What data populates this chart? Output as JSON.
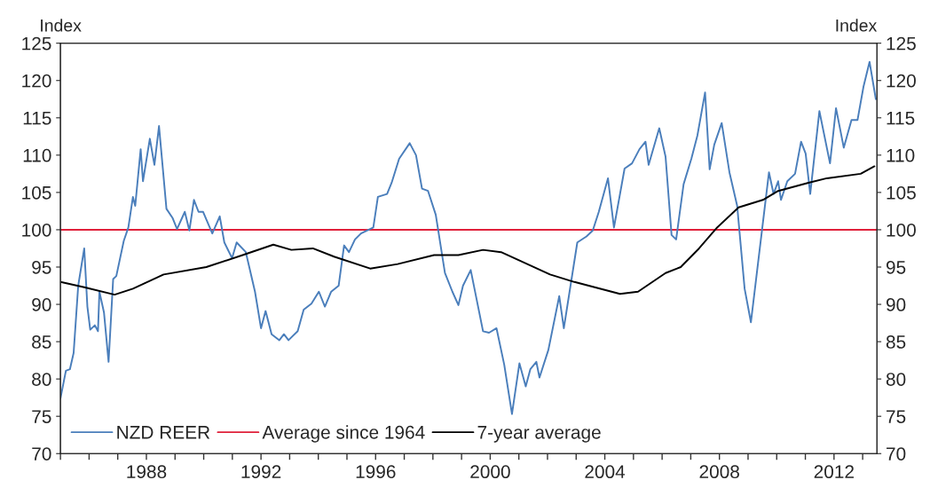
{
  "chart_data": {
    "type": "line",
    "ylabel": "Index",
    "y2label": "Index",
    "series": [
      {
        "name": "NZD REER",
        "color": "#4a7ebb",
        "x": [
          1985.0,
          1985.19,
          1985.33,
          1985.46,
          1985.62,
          1985.83,
          1985.94,
          1986.04,
          1986.2,
          1986.31,
          1986.36,
          1986.52,
          1986.68,
          1986.84,
          1986.95,
          1987.21,
          1987.37,
          1987.53,
          1987.61,
          1987.8,
          1987.88,
          1988.12,
          1988.28,
          1988.44,
          1988.7,
          1988.91,
          1989.07,
          1989.34,
          1989.5,
          1989.66,
          1989.82,
          1989.98,
          1990.3,
          1990.56,
          1990.72,
          1990.99,
          1991.15,
          1991.47,
          1991.79,
          1992.0,
          1992.16,
          1992.37,
          1992.64,
          1992.8,
          1992.96,
          1993.28,
          1993.49,
          1993.76,
          1994.02,
          1994.23,
          1994.45,
          1994.71,
          1994.9,
          1995.07,
          1995.28,
          1995.49,
          1995.92,
          1996.08,
          1996.4,
          1996.56,
          1996.82,
          1997.19,
          1997.41,
          1997.62,
          1997.83,
          1998.1,
          1998.42,
          1998.68,
          1998.89,
          1999.05,
          1999.32,
          1999.75,
          1999.96,
          2000.22,
          2000.49,
          2000.76,
          2001.02,
          2001.24,
          2001.4,
          2001.61,
          2001.72,
          2002.03,
          2002.41,
          2002.57,
          2003.04,
          2003.36,
          2003.58,
          2003.79,
          2004.11,
          2004.32,
          2004.69,
          2004.95,
          2005.21,
          2005.42,
          2005.53,
          2005.9,
          2006.12,
          2006.33,
          2006.49,
          2006.75,
          2007.02,
          2007.23,
          2007.5,
          2007.66,
          2007.82,
          2008.08,
          2008.35,
          2008.62,
          2008.88,
          2009.1,
          2009.41,
          2009.73,
          2009.89,
          2010.05,
          2010.15,
          2010.37,
          2010.64,
          2010.85,
          2011.01,
          2011.17,
          2011.49,
          2011.86,
          2012.07,
          2012.34,
          2012.61,
          2012.82,
          2013.03,
          2013.24,
          2013.46
        ],
        "values": [
          77.4,
          81.1,
          81.3,
          83.5,
          92.5,
          97.5,
          89.7,
          86.6,
          87.2,
          86.4,
          91.7,
          88.9,
          82.3,
          93.4,
          93.8,
          98.5,
          100.3,
          104.4,
          103.2,
          110.8,
          106.5,
          112.2,
          108.7,
          113.9,
          102.8,
          101.6,
          100.1,
          102.4,
          99.9,
          104.0,
          102.4,
          102.4,
          99.5,
          101.8,
          98.3,
          96.2,
          98.3,
          97.0,
          91.7,
          86.8,
          89.1,
          86.0,
          85.2,
          86.0,
          85.2,
          86.4,
          89.3,
          90.1,
          91.7,
          89.7,
          91.7,
          92.5,
          97.9,
          97.0,
          98.7,
          99.5,
          100.3,
          104.4,
          104.8,
          106.3,
          109.5,
          111.6,
          110.0,
          105.5,
          105.2,
          102.0,
          94.2,
          91.7,
          89.9,
          92.5,
          94.6,
          86.4,
          86.2,
          86.8,
          81.9,
          75.3,
          82.1,
          79.0,
          81.3,
          82.3,
          80.2,
          83.9,
          91.1,
          86.8,
          98.3,
          99.1,
          99.9,
          102.4,
          106.9,
          100.3,
          108.2,
          108.9,
          110.8,
          111.8,
          108.7,
          113.6,
          109.8,
          99.3,
          98.7,
          106.1,
          109.5,
          112.6,
          118.4,
          108.1,
          111.4,
          114.3,
          107.7,
          103.2,
          92.1,
          87.6,
          97.5,
          107.7,
          104.8,
          106.5,
          104.0,
          106.5,
          107.5,
          111.8,
          110.2,
          104.8,
          115.9,
          108.9,
          116.3,
          111.0,
          114.7,
          114.7,
          119.2,
          122.5,
          117.5
        ]
      },
      {
        "name": "7-year average",
        "color": "#000000",
        "x": [
          1985.0,
          1985.83,
          1986.89,
          1987.53,
          1988.6,
          1990.09,
          1991.36,
          1992.43,
          1993.06,
          1993.81,
          1994.55,
          1995.81,
          1996.77,
          1998.04,
          1998.89,
          1999.75,
          2000.38,
          2002.09,
          2002.94,
          2004.53,
          2005.16,
          2006.12,
          2006.65,
          2007.29,
          2007.92,
          2008.67,
          2009.52,
          2010.05,
          2011.11,
          2011.75,
          2012.93,
          2013.41
        ],
        "values": [
          93.0,
          92.3,
          91.3,
          92.1,
          94.0,
          95.0,
          96.6,
          98.0,
          97.3,
          97.5,
          96.4,
          94.8,
          95.4,
          96.6,
          96.6,
          97.3,
          97.0,
          94.0,
          93.0,
          91.4,
          91.7,
          94.2,
          95.0,
          97.5,
          100.3,
          103.0,
          104.0,
          105.2,
          106.3,
          106.9,
          107.5,
          108.5
        ]
      }
    ],
    "ref_lines": [
      {
        "axis": "y",
        "value": 100,
        "label": "Average since 1964",
        "color": "#e0203a"
      }
    ],
    "xlim": [
      1985,
      2013.5
    ],
    "xticks": [
      {
        "value": 1985,
        "label": null
      },
      {
        "value": 1986,
        "label": null
      },
      {
        "value": 1987,
        "label": null
      },
      1988,
      {
        "value": 1989,
        "label": null
      },
      {
        "value": 1990,
        "label": null
      },
      {
        "value": 1991,
        "label": null
      },
      1992,
      {
        "value": 1993,
        "label": null
      },
      {
        "value": 1994,
        "label": null
      },
      {
        "value": 1995,
        "label": null
      },
      1996,
      {
        "value": 1997,
        "label": null
      },
      {
        "value": 1998,
        "label": null
      },
      {
        "value": 1999,
        "label": null
      },
      2000,
      {
        "value": 2001,
        "label": null
      },
      {
        "value": 2002,
        "label": null
      },
      {
        "value": 2003,
        "label": null
      },
      2004,
      {
        "value": 2005,
        "label": null
      },
      {
        "value": 2006,
        "label": null
      },
      {
        "value": 2007,
        "label": null
      },
      2008,
      {
        "value": 2009,
        "label": null
      },
      {
        "value": 2010,
        "label": null
      },
      {
        "value": 2011,
        "label": null
      },
      2012,
      {
        "value": 2013,
        "label": null
      }
    ],
    "ylim": [
      70,
      125
    ],
    "yticks": [
      70,
      75,
      80,
      85,
      90,
      95,
      100,
      105,
      110,
      115,
      120,
      125
    ],
    "y2lim": [
      70,
      125
    ],
    "y2ticks": [
      70,
      75,
      80,
      85,
      90,
      95,
      100,
      105,
      110,
      115,
      120,
      125
    ],
    "grid": false,
    "legend": "bottom left",
    "line_style": "solid",
    "marker": "none"
  }
}
